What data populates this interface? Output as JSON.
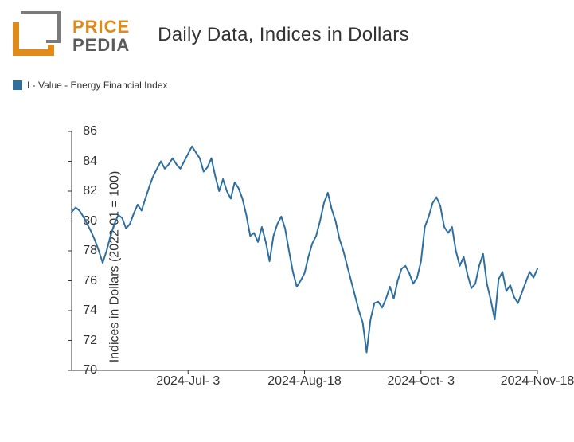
{
  "logo": {
    "line1": "PRICE",
    "line2": "PEDIA",
    "color_line1": "#e08a1a",
    "color_line2": "#5a5a5a",
    "mark_color_outer": "#7a7a7a",
    "mark_color_inner": "#e08a1a"
  },
  "chart": {
    "type": "line",
    "title": "Daily Data, Indices in Dollars",
    "title_fontsize": 24,
    "y_axis_title": "Indices in Dollars (2022-01 = 100)",
    "y_axis_title_fontsize": 16,
    "axis_color": "#333333",
    "tick_fontsize": 16,
    "background_color": "#ffffff",
    "ylim": [
      70,
      86
    ],
    "ytick_step": 2,
    "yticks": [
      70,
      72,
      74,
      76,
      78,
      80,
      82,
      84,
      86
    ],
    "x_tick_labels": [
      "2024-Jul- 3",
      "2024-Aug-18",
      "2024-Oct- 3",
      "2024-Nov-18"
    ],
    "x_tick_indices": [
      30,
      60,
      90,
      120
    ],
    "x_range": [
      0,
      120
    ],
    "legend_label": "I - Value - Energy Financial Index",
    "series_color": "#2f6f9f",
    "line_width": 2,
    "values": [
      80.6,
      80.9,
      80.7,
      80.3,
      79.8,
      79.3,
      78.7,
      78.0,
      77.2,
      78.0,
      79.0,
      79.8,
      80.4,
      80.2,
      79.5,
      79.8,
      80.5,
      81.1,
      80.7,
      81.5,
      82.3,
      83.0,
      83.5,
      84.0,
      83.5,
      83.8,
      84.2,
      83.8,
      83.5,
      84.0,
      84.5,
      85.0,
      84.6,
      84.2,
      83.3,
      83.6,
      84.2,
      83.0,
      82.0,
      82.8,
      82.0,
      81.5,
      82.6,
      82.2,
      81.5,
      80.4,
      79.0,
      79.2,
      78.6,
      79.6,
      78.6,
      77.3,
      79.0,
      79.8,
      80.3,
      79.5,
      78.0,
      76.6,
      75.6,
      76.0,
      76.5,
      77.6,
      78.5,
      79.0,
      80.0,
      81.2,
      81.9,
      80.8,
      80.0,
      78.8,
      78.0,
      77.0,
      76.0,
      75.0,
      74.0,
      73.2,
      71.2,
      73.4,
      74.5,
      74.6,
      74.2,
      74.8,
      75.6,
      74.8,
      76.0,
      76.8,
      77.0,
      76.5,
      75.8,
      76.2,
      77.3,
      79.6,
      80.3,
      81.2,
      81.6,
      81.0,
      79.6,
      79.2,
      79.6,
      78.0,
      77.0,
      77.6,
      76.4,
      75.5,
      75.8,
      77.0,
      77.8,
      75.8,
      74.7,
      73.4,
      76.1,
      76.6,
      75.3,
      75.7,
      74.9,
      74.5,
      75.2,
      75.9,
      76.6,
      76.2,
      76.8
    ]
  }
}
